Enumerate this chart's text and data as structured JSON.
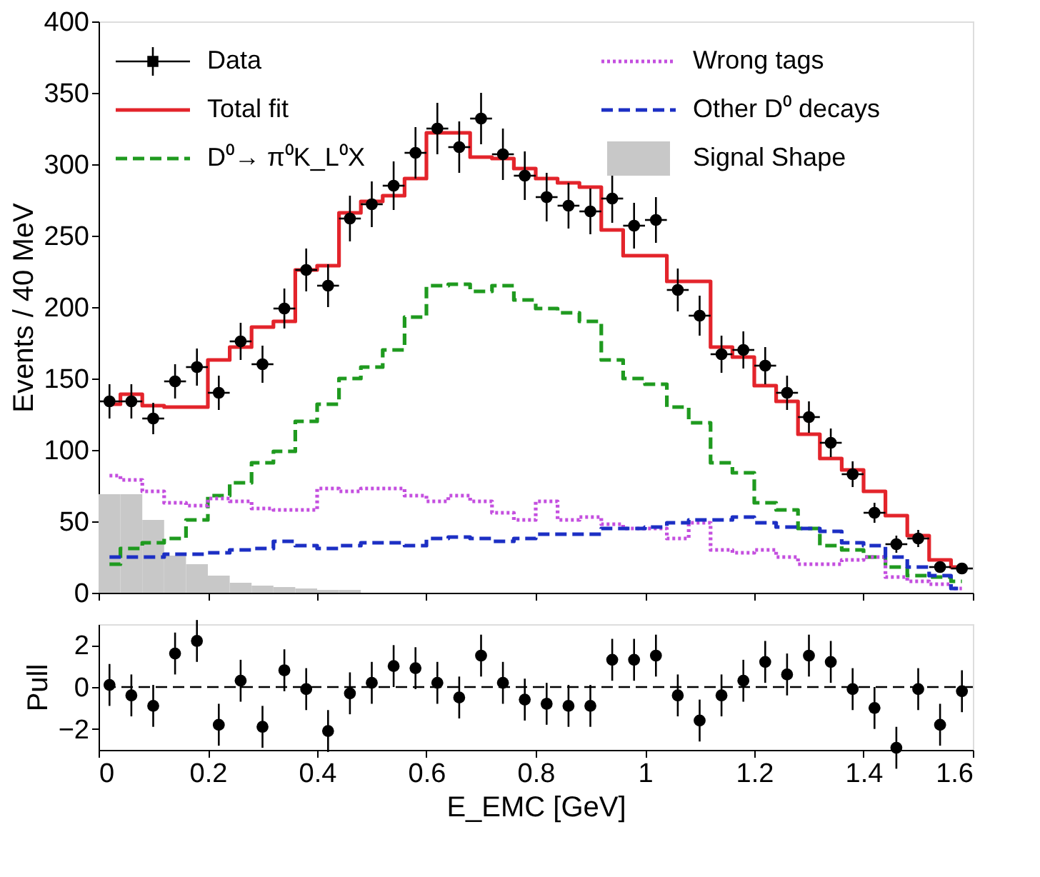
{
  "chart_data": [
    {
      "type": "histogram",
      "ylabel": "Events / 40 MeV",
      "bins": [
        0,
        0.04,
        0.08,
        0.12,
        0.16,
        0.2,
        0.24,
        0.28,
        0.32,
        0.36,
        0.4,
        0.44,
        0.48,
        0.52,
        0.56,
        0.6,
        0.64,
        0.68,
        0.72,
        0.76,
        0.8,
        0.84,
        0.88,
        0.92,
        0.96,
        1,
        1.04,
        1.08,
        1.12,
        1.16,
        1.2,
        1.24,
        1.28,
        1.32,
        1.36,
        1.4,
        1.44,
        1.48,
        1.52,
        1.56,
        1.6
      ],
      "series": [
        {
          "name": "Data",
          "type": "scatter",
          "color": "#000000",
          "marker": "circle",
          "x": [
            0.02,
            0.06,
            0.1,
            0.14,
            0.18,
            0.22,
            0.26,
            0.3,
            0.34,
            0.38,
            0.42,
            0.46,
            0.5,
            0.54,
            0.58,
            0.62,
            0.66,
            0.7,
            0.74,
            0.78,
            0.82,
            0.86,
            0.9,
            0.94,
            0.98,
            1.02,
            1.06,
            1.1,
            1.14,
            1.18,
            1.22,
            1.26,
            1.3,
            1.34,
            1.38,
            1.42,
            1.46,
            1.5,
            1.54,
            1.58
          ],
          "values": [
            134,
            134,
            122,
            148,
            158,
            140,
            176,
            160,
            199,
            226,
            215,
            262,
            272,
            285,
            308,
            325,
            312,
            332,
            307,
            292,
            277,
            271,
            267,
            276,
            257,
            261,
            212,
            194,
            167,
            170,
            159,
            140,
            123,
            105,
            83,
            56,
            34,
            38,
            18,
            17
          ],
          "errors": [
            12,
            12,
            11,
            12,
            13,
            12,
            13,
            13,
            14,
            15,
            15,
            16,
            16,
            17,
            18,
            18,
            18,
            18,
            18,
            17,
            17,
            16,
            16,
            17,
            16,
            16,
            15,
            14,
            13,
            13,
            13,
            12,
            11,
            10,
            9,
            7,
            6,
            6,
            4,
            4
          ],
          "xerrors": [
            0.02,
            0.02,
            0.02,
            0.02,
            0.02,
            0.02,
            0.02,
            0.02,
            0.02,
            0.02,
            0.02,
            0.02,
            0.02,
            0.02,
            0.02,
            0.02,
            0.02,
            0.02,
            0.02,
            0.02,
            0.02,
            0.02,
            0.02,
            0.02,
            0.02,
            0.02,
            0.02,
            0.02,
            0.02,
            0.02,
            0.02,
            0.02,
            0.02,
            0.02,
            0.02,
            0.02,
            0.02,
            0.02,
            0.02,
            0.02
          ]
        },
        {
          "name": "Total fit",
          "type": "step",
          "x": [
            0.02,
            0.06,
            0.1,
            0.14,
            0.18,
            0.22,
            0.26,
            0.3,
            0.34,
            0.38,
            0.42,
            0.46,
            0.5,
            0.54,
            0.58,
            0.62,
            0.66,
            0.7,
            0.74,
            0.78,
            0.82,
            0.86,
            0.9,
            0.94,
            0.98,
            1.02,
            1.06,
            1.1,
            1.14,
            1.18,
            1.22,
            1.26,
            1.3,
            1.34,
            1.38,
            1.42,
            1.46,
            1.5,
            1.54,
            1.58
          ],
          "color": "#e3242b",
          "line_style": "solid",
          "values": [
            132,
            139,
            131,
            130,
            130,
            163,
            172,
            186,
            190,
            226,
            229,
            266,
            274,
            278,
            290,
            322,
            322,
            305,
            304,
            297,
            290,
            287,
            284,
            254,
            236,
            236,
            218,
            218,
            172,
            165,
            145,
            134,
            111,
            94,
            86,
            71,
            54,
            40,
            23,
            18
          ]
        },
        {
          "name": "D⁰→ π⁰K_L⁰X",
          "type": "step",
          "x": [
            0.02,
            0.06,
            0.1,
            0.14,
            0.18,
            0.22,
            0.26,
            0.3,
            0.34,
            0.38,
            0.42,
            0.46,
            0.5,
            0.54,
            0.58,
            0.62,
            0.66,
            0.7,
            0.74,
            0.78,
            0.82,
            0.86,
            0.9,
            0.94,
            0.98,
            1.02,
            1.06,
            1.1,
            1.14,
            1.18,
            1.22,
            1.26,
            1.3,
            1.34,
            1.38,
            1.42,
            1.46,
            1.5,
            1.54,
            1.58
          ],
          "color": "#1f9a1f",
          "line_style": "dashed",
          "values": [
            20,
            31,
            35,
            38,
            51,
            68,
            77,
            91,
            99,
            120,
            132,
            150,
            158,
            170,
            193,
            215,
            216,
            211,
            215,
            205,
            199,
            196,
            190,
            163,
            150,
            146,
            130,
            119,
            91,
            84,
            63,
            58,
            45,
            33,
            30,
            25,
            18,
            12,
            11,
            8
          ]
        },
        {
          "name": "Wrong tags",
          "type": "step",
          "x": [
            0.02,
            0.06,
            0.1,
            0.14,
            0.18,
            0.22,
            0.26,
            0.3,
            0.34,
            0.38,
            0.42,
            0.46,
            0.5,
            0.54,
            0.58,
            0.62,
            0.66,
            0.7,
            0.74,
            0.78,
            0.82,
            0.86,
            0.9,
            0.94,
            0.98,
            1.02,
            1.06,
            1.1,
            1.14,
            1.18,
            1.22,
            1.26,
            1.3,
            1.34,
            1.38,
            1.42,
            1.46,
            1.5,
            1.54,
            1.58
          ],
          "color": "#c44fdf",
          "line_style": "dotted",
          "values": [
            82,
            79,
            71,
            63,
            61,
            66,
            64,
            59,
            58,
            58,
            73,
            71,
            73,
            73,
            68,
            64,
            68,
            64,
            56,
            51,
            64,
            51,
            53,
            48,
            45,
            45,
            38,
            49,
            30,
            28,
            30,
            25,
            20,
            20,
            23,
            25,
            11,
            8,
            6,
            3
          ]
        },
        {
          "name": "Other D⁰ decays",
          "type": "step",
          "x": [
            0.02,
            0.06,
            0.1,
            0.14,
            0.18,
            0.22,
            0.26,
            0.3,
            0.34,
            0.38,
            0.42,
            0.46,
            0.5,
            0.54,
            0.58,
            0.62,
            0.66,
            0.7,
            0.74,
            0.78,
            0.82,
            0.86,
            0.9,
            0.94,
            0.98,
            1.02,
            1.06,
            1.1,
            1.14,
            1.18,
            1.22,
            1.26,
            1.3,
            1.34,
            1.38,
            1.42,
            1.46,
            1.5,
            1.54,
            1.58
          ],
          "color": "#1c2fc4",
          "line_style": "dashed",
          "values": [
            25,
            25,
            25,
            27,
            27,
            28,
            30,
            31,
            36,
            33,
            31,
            33,
            35,
            35,
            33,
            38,
            39,
            38,
            36,
            38,
            41,
            41,
            41,
            45,
            45,
            46,
            49,
            51,
            51,
            53,
            49,
            46,
            45,
            43,
            35,
            33,
            25,
            18,
            12,
            3
          ]
        },
        {
          "name": "Signal Shape",
          "type": "histogram",
          "color": "#c8c8c8",
          "values": [
            69,
            69,
            51,
            26,
            20,
            12,
            7,
            5,
            4,
            3,
            2,
            2,
            null,
            null,
            0,
            0,
            0,
            0,
            0,
            0,
            0,
            0,
            0,
            0,
            0,
            0,
            0,
            0,
            0,
            0,
            0,
            0,
            0,
            0,
            0,
            0,
            0,
            0,
            0,
            0
          ]
        }
      ],
      "xlim": [
        0,
        1.6
      ],
      "xticks": [
        0,
        0.2,
        0.4,
        0.6,
        0.8,
        1,
        1.2,
        1.4,
        1.6
      ],
      "ylim": [
        0,
        400
      ],
      "yticks": [
        0,
        50,
        100,
        150,
        200,
        250,
        300,
        350,
        400
      ],
      "tick_labels": "y",
      "legend": "top",
      "grid": false
    },
    {
      "type": "scatter",
      "xlabel": "E_EMC [GeV]",
      "ylabel": "Pull",
      "color": "#000000",
      "marker": "circle",
      "x": [
        0.02,
        0.06,
        0.1,
        0.14,
        0.18,
        0.22,
        0.26,
        0.3,
        0.34,
        0.38,
        0.42,
        0.46,
        0.5,
        0.54,
        0.58,
        0.62,
        0.66,
        0.7,
        0.74,
        0.78,
        0.82,
        0.86,
        0.9,
        0.94,
        0.98,
        1.02,
        1.06,
        1.1,
        1.14,
        1.18,
        1.22,
        1.26,
        1.3,
        1.34,
        1.38,
        1.42,
        1.46,
        1.5,
        1.54,
        1.58
      ],
      "values": [
        0.1,
        -0.4,
        -0.9,
        1.6,
        2.2,
        -1.8,
        0.3,
        -1.9,
        0.8,
        -0.1,
        -2.1,
        -0.3,
        0.2,
        1.0,
        0.9,
        0.2,
        -0.5,
        1.5,
        0.2,
        -0.6,
        -0.8,
        -0.9,
        -0.9,
        1.3,
        1.3,
        1.5,
        -0.4,
        -1.6,
        -0.4,
        0.3,
        1.2,
        0.6,
        1.5,
        1.2,
        -0.1,
        -1.0,
        -2.9,
        -0.1,
        -1.8,
        -0.2
      ],
      "errors": [
        1,
        1,
        1,
        1,
        1,
        1,
        1,
        1,
        1,
        1,
        1,
        1,
        1,
        1,
        1,
        1,
        1,
        1,
        1,
        1,
        1,
        1,
        1,
        1,
        1,
        1,
        1,
        1,
        1,
        1,
        1,
        1,
        1,
        1,
        1,
        1,
        1,
        1,
        1,
        1
      ],
      "xlim": [
        0,
        1.6
      ],
      "xticks": [
        0,
        0.2,
        0.4,
        0.6,
        0.8,
        1,
        1.2,
        1.4,
        1.6
      ],
      "ylim": [
        -3,
        3
      ],
      "yticks": [
        {
          "value": -2,
          "label": "−2"
        },
        0,
        2
      ],
      "ref_lines": [
        {
          "axis": "y",
          "value": 0,
          "color": "#000000",
          "line_style": "dashed"
        }
      ],
      "grid": false
    }
  ]
}
